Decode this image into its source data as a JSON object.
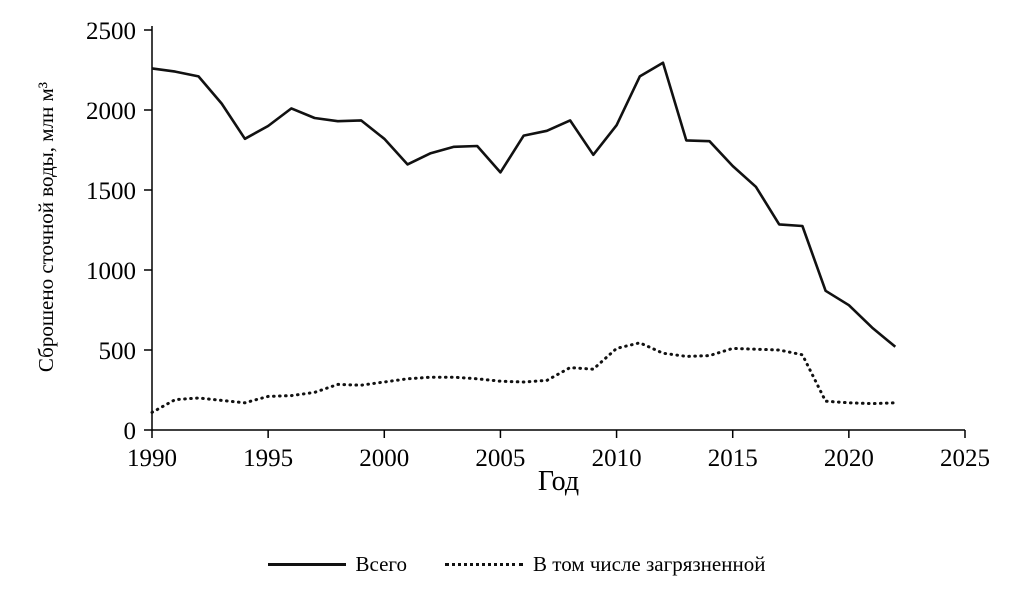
{
  "chart_data": {
    "type": "line",
    "title": "",
    "xlabel": "Год",
    "ylabel": "Сброшено сточной воды, млн м³",
    "xlim": [
      1990,
      2025
    ],
    "ylim": [
      0,
      2500
    ],
    "x_ticks": [
      1990,
      1995,
      2000,
      2005,
      2010,
      2015,
      2020,
      2025
    ],
    "y_ticks": [
      0,
      500,
      1000,
      1500,
      2000,
      2500
    ],
    "grid": false,
    "legend_position": "bottom",
    "line_color": "#111111",
    "x": [
      1990,
      1991,
      1992,
      1993,
      1994,
      1995,
      1996,
      1997,
      1998,
      1999,
      2000,
      2001,
      2002,
      2003,
      2004,
      2005,
      2006,
      2007,
      2008,
      2009,
      2010,
      2011,
      2012,
      2013,
      2014,
      2015,
      2016,
      2017,
      2018,
      2019,
      2020,
      2021,
      2022
    ],
    "series": [
      {
        "name": "Всего",
        "style": "solid",
        "values": [
          2260,
          2240,
          2210,
          2040,
          1820,
          1900,
          2010,
          1950,
          1930,
          1935,
          1820,
          1660,
          1730,
          1770,
          1775,
          1610,
          1840,
          1870,
          1935,
          1720,
          1905,
          2210,
          2295,
          1810,
          1805,
          1650,
          1520,
          1285,
          1275,
          870,
          780,
          640,
          520
        ]
      },
      {
        "name": "В том числе загрязненной",
        "style": "dotted",
        "values": [
          110,
          190,
          200,
          185,
          170,
          210,
          215,
          235,
          285,
          280,
          300,
          320,
          330,
          330,
          320,
          305,
          300,
          310,
          390,
          380,
          510,
          545,
          480,
          460,
          465,
          510,
          505,
          500,
          470,
          180,
          170,
          165,
          170
        ]
      }
    ]
  },
  "legend": {
    "items": [
      {
        "label": "Всего",
        "style": "solid"
      },
      {
        "label": "В  том числе загрязненной",
        "style": "dotted"
      }
    ]
  }
}
